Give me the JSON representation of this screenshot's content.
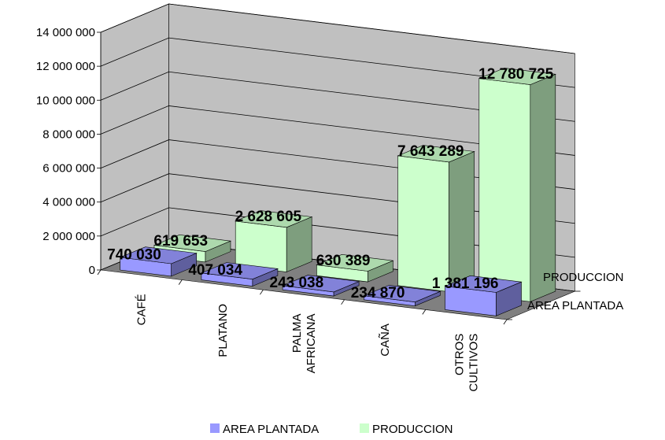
{
  "chart_data": {
    "type": "bar",
    "categories": [
      [
        "CAFÉ"
      ],
      [
        "PLATANO"
      ],
      [
        "PALMA",
        "AFRICANA"
      ],
      [
        "CAÑA"
      ],
      [
        "OTROS",
        "CULTIVOS"
      ]
    ],
    "series": [
      {
        "name": "AREA PLANTADA",
        "values": [
          740030,
          407034,
          243038,
          234870,
          1381196
        ],
        "labels": [
          "740 030",
          "407 034",
          "243 038",
          "234 870",
          "1 381 196"
        ],
        "color": "#9999ff"
      },
      {
        "name": "PRODUCCION",
        "values": [
          619653,
          2628605,
          630389,
          7643289,
          12780725
        ],
        "labels": [
          "619 653",
          "2 628 605",
          "630 389",
          "7 643 289",
          "12 780 725"
        ],
        "color": "#ccffcc"
      }
    ],
    "y_ticks": [
      {
        "value": 0,
        "label": "0"
      },
      {
        "value": 2000000,
        "label": "2 000 000"
      },
      {
        "value": 4000000,
        "label": "4 000 000"
      },
      {
        "value": 6000000,
        "label": "6 000 000"
      },
      {
        "value": 8000000,
        "label": "8 000 000"
      },
      {
        "value": 10000000,
        "label": "10 000 000"
      },
      {
        "value": 12000000,
        "label": "12 000 000"
      },
      {
        "value": 14000000,
        "label": "14 000 000"
      }
    ],
    "ylim": [
      0,
      14000000
    ],
    "depth_labels": [
      "PRODUCCION",
      "AREA PLANTADA"
    ],
    "legend_position": "bottom",
    "grid": true,
    "colors": {
      "wall": "#c0c0c0",
      "floor": "#808080"
    }
  }
}
